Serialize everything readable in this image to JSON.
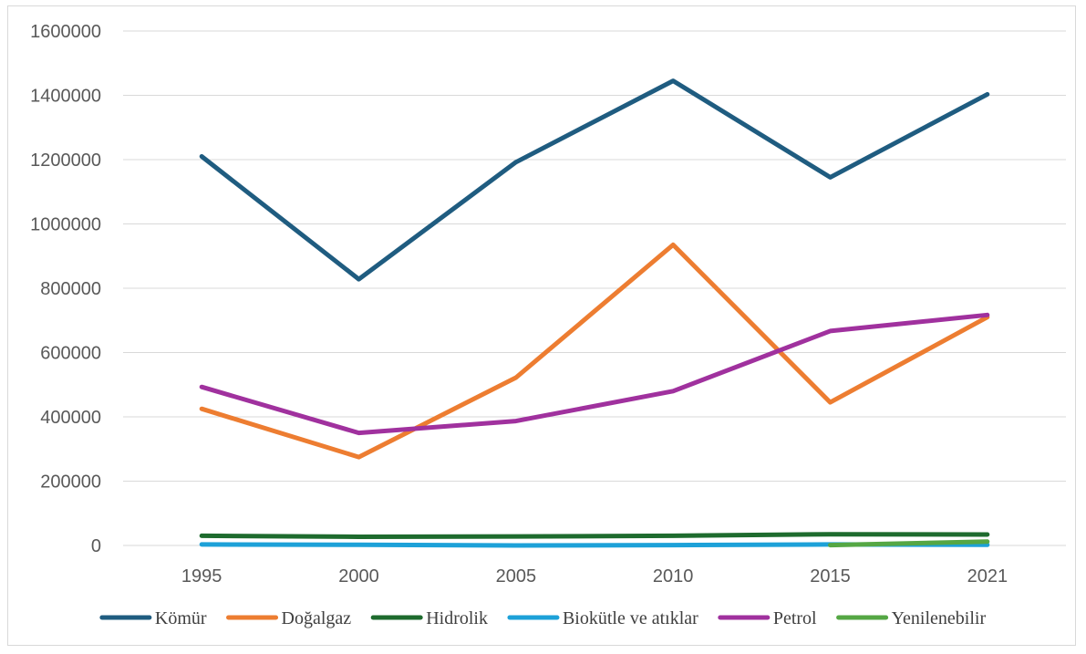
{
  "chart_data": {
    "type": "line",
    "title": "",
    "xlabel": "",
    "ylabel": "",
    "categories": [
      "1995",
      "2000",
      "2005",
      "2010",
      "2015",
      "2021"
    ],
    "ylim": [
      0,
      1600000
    ],
    "yticks": [
      "0",
      "200000",
      "400000",
      "600000",
      "800000",
      "1000000",
      "1200000",
      "1400000",
      "1600000"
    ],
    "grid": true,
    "legend_position": "bottom",
    "series": [
      {
        "name": "Kömür",
        "color": "#1f5c80",
        "values": [
          1210000,
          828000,
          1192000,
          1445000,
          1145000,
          1403000
        ]
      },
      {
        "name": "Doğalgaz",
        "color": "#ed7d31",
        "values": [
          425000,
          275000,
          522000,
          935000,
          445000,
          710000
        ]
      },
      {
        "name": "Hidrolik",
        "color": "#1e6b2e",
        "values": [
          30000,
          27000,
          28000,
          30000,
          35000,
          34000
        ]
      },
      {
        "name": "Biokütle ve atıklar",
        "color": "#1da1d8",
        "values": [
          3000,
          2000,
          0,
          1000,
          3000,
          2000
        ]
      },
      {
        "name": "Petrol",
        "color": "#a0319e",
        "values": [
          493000,
          350000,
          387000,
          480000,
          667000,
          717000
        ]
      },
      {
        "name": "Yenilenebilir",
        "color": "#55a744",
        "values": [
          null,
          null,
          null,
          null,
          1000,
          12000
        ]
      }
    ]
  }
}
